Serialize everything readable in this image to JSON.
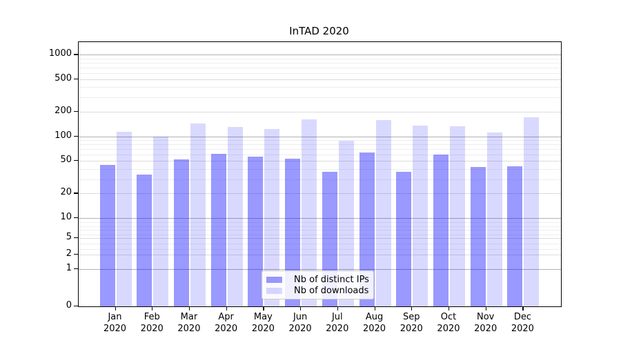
{
  "title": "InTAD 2020",
  "chart_data": {
    "type": "bar",
    "title": "InTAD 2020",
    "categories": [
      "Jan",
      "Feb",
      "Mar",
      "Apr",
      "May",
      "Jun",
      "Jul",
      "Aug",
      "Sep",
      "Oct",
      "Nov",
      "Dec"
    ],
    "year_label": "2020",
    "series": [
      {
        "name": "Nb of distinct IPs",
        "color": "rgba(0,0,255,0.4)",
        "values": [
          45,
          34,
          52,
          61,
          57,
          53,
          37,
          63,
          37,
          60,
          42,
          43
        ]
      },
      {
        "name": "Nb of downloads",
        "color": "rgba(0,0,255,0.15)",
        "values": [
          114,
          100,
          145,
          131,
          124,
          163,
          89,
          160,
          137,
          132,
          112,
          170
        ]
      }
    ],
    "yscale": "log-with-zero",
    "y_ticks": [
      1000,
      500,
      200,
      100,
      50,
      20,
      10,
      5,
      2,
      1,
      0
    ],
    "y_minor_gridlines": [
      3,
      4,
      6,
      7,
      8,
      9,
      30,
      40,
      60,
      70,
      80,
      90,
      300,
      400,
      600,
      700,
      800,
      900
    ],
    "ylim": [
      0,
      1300
    ],
    "xlabel": "",
    "ylabel": "",
    "grid": "on",
    "legend_position": "lower-center",
    "colors": {
      "grid_major": "#b2b2b2",
      "grid_mid": "#dcdcdc",
      "grid_minor": "#eeeeee",
      "axis": "#000000",
      "legend_border": "#cccccc"
    }
  }
}
